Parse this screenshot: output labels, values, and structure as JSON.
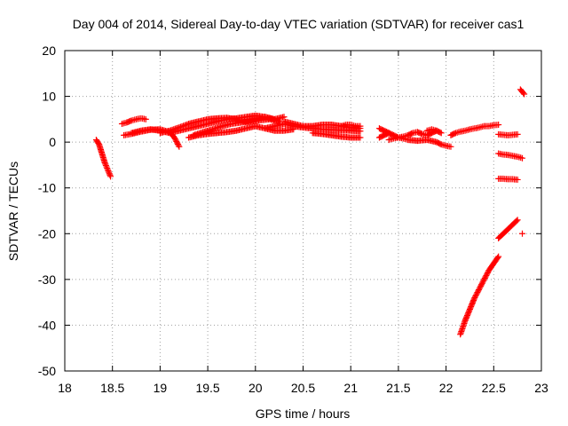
{
  "chart_data": {
    "type": "scatter",
    "title": "Day 004 of 2014, Sidereal Day-to-day VTEC variation (SDTVAR) for receiver cas1",
    "xlabel": "GPS time / hours",
    "ylabel": "SDTVAR / TECUs",
    "xlim": [
      18,
      23
    ],
    "ylim": [
      -50,
      20
    ],
    "xticks": [
      18,
      18.5,
      19,
      19.5,
      20,
      20.5,
      21,
      21.5,
      22,
      22.5,
      23
    ],
    "yticks": [
      -50,
      -40,
      -30,
      -20,
      -10,
      0,
      10,
      20
    ],
    "grid": true,
    "marker": "plus",
    "color": "#ff0000",
    "segments": [
      {
        "x": [
          18.33,
          18.36,
          18.39,
          18.42,
          18.45,
          18.48
        ],
        "y": [
          0.5,
          -0.5,
          -2.5,
          -4.5,
          -6.0,
          -7.5
        ]
      },
      {
        "x": [
          18.6,
          18.65,
          18.7,
          18.75,
          18.8,
          18.85
        ],
        "y": [
          4.0,
          4.3,
          4.7,
          5.0,
          5.2,
          5.0
        ]
      },
      {
        "x": [
          18.62,
          18.7,
          18.8,
          18.9,
          19.0,
          19.1,
          19.15,
          19.2
        ],
        "y": [
          1.5,
          1.8,
          2.3,
          2.7,
          2.8,
          2.2,
          1.0,
          -1.0
        ]
      },
      {
        "x": [
          18.7,
          18.8,
          18.9,
          19.0,
          19.1,
          19.2,
          19.3,
          19.4,
          19.5,
          19.6,
          19.7,
          19.8,
          19.9,
          20.0,
          20.1,
          20.2,
          20.3
        ],
        "y": [
          2.0,
          2.5,
          2.8,
          2.5,
          2.0,
          2.5,
          3.0,
          3.5,
          4.0,
          4.5,
          5.0,
          5.2,
          5.5,
          5.8,
          5.5,
          5.0,
          5.5
        ]
      },
      {
        "x": [
          19.0,
          19.1,
          19.2,
          19.3,
          19.4,
          19.5,
          19.6,
          19.7,
          19.8,
          19.9,
          20.0,
          20.1,
          20.2
        ],
        "y": [
          2.0,
          2.5,
          3.2,
          4.0,
          4.5,
          5.0,
          5.2,
          5.3,
          5.0,
          4.5,
          5.0,
          5.5,
          5.0
        ]
      },
      {
        "x": [
          19.35,
          19.45,
          19.55,
          19.65,
          19.75,
          19.85,
          19.95,
          20.05,
          20.15,
          20.25
        ],
        "y": [
          1.5,
          2.2,
          2.8,
          3.5,
          4.0,
          4.3,
          4.5,
          4.8,
          5.0,
          4.5
        ]
      },
      {
        "x": [
          19.3,
          19.4,
          19.5,
          19.6,
          19.7,
          19.8,
          19.9,
          20.0,
          20.1,
          20.2,
          20.3,
          20.4
        ],
        "y": [
          1.0,
          1.5,
          1.8,
          2.0,
          2.2,
          2.5,
          3.0,
          3.5,
          3.0,
          2.5,
          2.5,
          2.8
        ]
      },
      {
        "x": [
          20.1,
          20.2,
          20.3,
          20.4,
          20.5,
          20.6,
          20.7,
          20.8,
          20.9,
          21.0,
          21.1
        ],
        "y": [
          3.0,
          3.5,
          4.0,
          3.5,
          3.2,
          3.0,
          2.8,
          2.7,
          2.6,
          2.5,
          2.4
        ]
      },
      {
        "x": [
          20.3,
          20.4,
          20.5,
          20.6,
          20.7,
          20.8,
          20.9,
          21.0,
          21.1
        ],
        "y": [
          4.5,
          4.0,
          3.5,
          3.5,
          3.8,
          3.8,
          3.5,
          3.2,
          3.0
        ]
      },
      {
        "x": [
          20.6,
          20.7,
          20.8,
          20.9,
          21.0,
          21.1
        ],
        "y": [
          2.0,
          1.8,
          1.5,
          1.2,
          1.0,
          1.0
        ]
      },
      {
        "x": [
          20.9,
          20.95,
          21.0,
          21.05,
          21.1
        ],
        "y": [
          3.5,
          3.8,
          3.8,
          3.5,
          3.5
        ]
      },
      {
        "x": [
          21.3,
          21.35,
          21.4
        ],
        "y": [
          3.0,
          2.5,
          2.0
        ]
      },
      {
        "x": [
          21.3,
          21.35,
          21.4,
          21.45,
          21.5,
          21.55,
          21.6,
          21.65,
          21.7,
          21.75,
          21.8,
          21.85,
          21.9
        ],
        "y": [
          1.0,
          1.5,
          2.0,
          1.5,
          1.0,
          1.2,
          1.5,
          2.0,
          2.2,
          1.8,
          1.5,
          2.0,
          2.5
        ]
      },
      {
        "x": [
          21.4,
          21.45,
          21.5,
          21.55,
          21.6,
          21.7,
          21.8,
          21.9,
          21.95,
          22.0,
          22.05
        ],
        "y": [
          0.5,
          0.8,
          1.0,
          0.8,
          0.5,
          0.3,
          0.5,
          0.0,
          -0.5,
          -0.8,
          -1.0
        ]
      },
      {
        "x": [
          21.8,
          21.85,
          21.9,
          21.95
        ],
        "y": [
          2.5,
          2.8,
          2.5,
          2.0
        ]
      },
      {
        "x": [
          22.05,
          22.1,
          22.15,
          22.2,
          22.25,
          22.3,
          22.35,
          22.4,
          22.45,
          22.5,
          22.55
        ],
        "y": [
          1.5,
          2.0,
          2.3,
          2.5,
          2.8,
          3.0,
          3.2,
          3.5,
          3.5,
          3.7,
          3.8
        ]
      },
      {
        "x": [
          22.15,
          22.2,
          22.25,
          22.3,
          22.35,
          22.4,
          22.45,
          22.5,
          22.55
        ],
        "y": [
          -42.0,
          -39.0,
          -36.5,
          -34.0,
          -32.0,
          -30.0,
          -28.0,
          -26.5,
          -25.0
        ]
      },
      {
        "x": [
          22.55,
          22.6,
          22.65,
          22.7,
          22.75
        ],
        "y": [
          -21.0,
          -20.0,
          -19.0,
          -18.0,
          -17.0
        ]
      },
      {
        "x": [
          22.55,
          22.6,
          22.65,
          22.7,
          22.75
        ],
        "y": [
          1.7,
          1.6,
          1.5,
          1.6,
          1.7
        ]
      },
      {
        "x": [
          22.55,
          22.6,
          22.65,
          22.7,
          22.75,
          22.8
        ],
        "y": [
          -2.5,
          -2.7,
          -2.8,
          -3.0,
          -3.2,
          -3.5
        ]
      },
      {
        "x": [
          22.55,
          22.6,
          22.65,
          22.7,
          22.75
        ],
        "y": [
          -8.0,
          -8.0,
          -8.1,
          -8.1,
          -8.2
        ]
      },
      {
        "x": [
          22.78,
          22.8,
          22.82
        ],
        "y": [
          11.5,
          11.0,
          10.5
        ]
      },
      {
        "x": [
          22.8
        ],
        "y": [
          -20.0
        ]
      }
    ]
  }
}
